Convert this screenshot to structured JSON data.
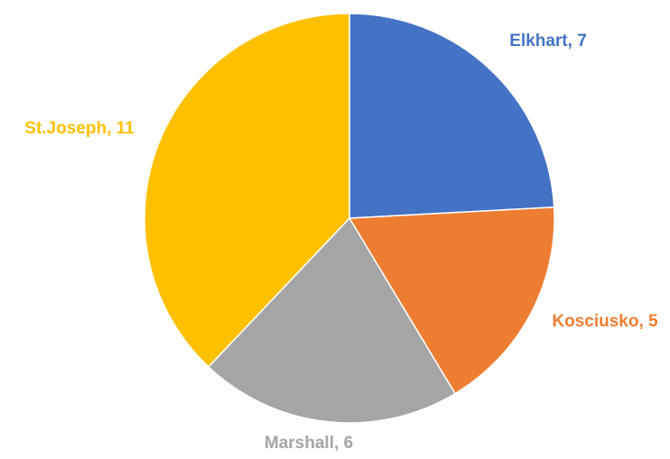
{
  "chart_data": {
    "type": "pie",
    "title": "",
    "slices": [
      {
        "label": "Elkhart",
        "value": 7,
        "color": "#4472C4",
        "data_label": "Elkhart, 7"
      },
      {
        "label": "Kosciusko",
        "value": 5,
        "color": "#ED7D31",
        "data_label": "Kosciusko, 5"
      },
      {
        "label": "Marshall",
        "value": 6,
        "color": "#A5A5A5",
        "data_label": "Marshall, 6"
      },
      {
        "label": "St.Joseph",
        "value": 11,
        "color": "#FFC000",
        "data_label": "St.Joseph, 11"
      }
    ],
    "legend": "none",
    "start_angle": "12 o'clock",
    "direction": "clockwise"
  }
}
